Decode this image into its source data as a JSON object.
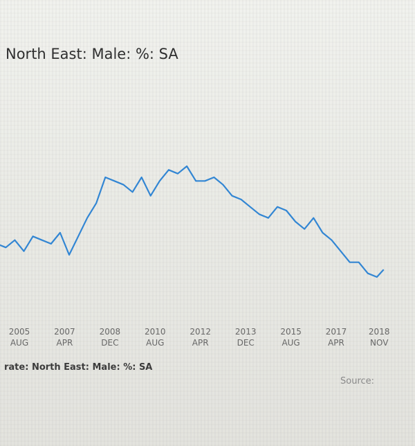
{
  "chart_data": {
    "type": "line",
    "title": "North East: Male: %: SA",
    "legend": "rate: North East: Male: %: SA",
    "source_label": "Source:",
    "line_color": "#2f86d6",
    "x_ticks": [
      {
        "year": "2005",
        "month": "AUG"
      },
      {
        "year": "2007",
        "month": "APR"
      },
      {
        "year": "2008",
        "month": "DEC"
      },
      {
        "year": "2010",
        "month": "AUG"
      },
      {
        "year": "2012",
        "month": "APR"
      },
      {
        "year": "2013",
        "month": "DEC"
      },
      {
        "year": "2015",
        "month": "AUG"
      },
      {
        "year": "2017",
        "month": "APR"
      },
      {
        "year": "2018",
        "month": "NOV"
      }
    ],
    "x_range": [
      "2004-09",
      "2019-02"
    ],
    "y_axis_visible": false,
    "series": [
      {
        "x": [
          "2004-10",
          "2005-02",
          "2005-06",
          "2005-10",
          "2006-02",
          "2006-06",
          "2006-10",
          "2007-02",
          "2007-06",
          "2007-10",
          "2008-02",
          "2008-06",
          "2008-10",
          "2009-02",
          "2009-06",
          "2009-10",
          "2010-02",
          "2010-06",
          "2010-10",
          "2011-02",
          "2011-06",
          "2011-10",
          "2012-02",
          "2012-06",
          "2012-10",
          "2013-02",
          "2013-06",
          "2013-10",
          "2014-02",
          "2014-06",
          "2014-10",
          "2015-02",
          "2015-06",
          "2015-10",
          "2016-02",
          "2016-06",
          "2016-10",
          "2017-02",
          "2017-06",
          "2017-10",
          "2018-02",
          "2018-06",
          "2018-10",
          "2019-01"
        ],
        "values": [
          33,
          32,
          34,
          31,
          35,
          34,
          33,
          36,
          30,
          35,
          40,
          44,
          51,
          50,
          49,
          47,
          51,
          46,
          50,
          53,
          52,
          54,
          50,
          50,
          51,
          49,
          46,
          45,
          43,
          41,
          40,
          43,
          42,
          39,
          37,
          40,
          36,
          34,
          31,
          28,
          28,
          25,
          24,
          26
        ]
      }
    ]
  }
}
